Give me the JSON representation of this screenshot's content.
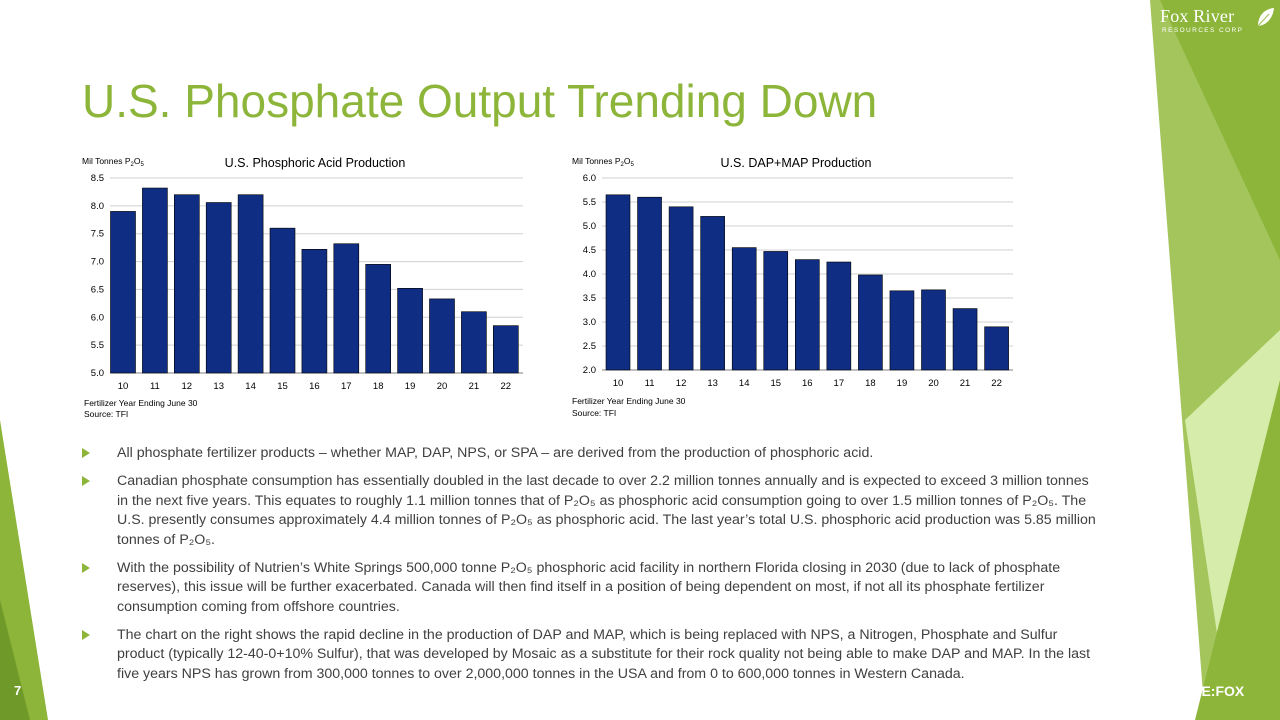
{
  "slide": {
    "title": "U.S. Phosphate Output Trending Down",
    "page_number": "7",
    "ticker": "CSE:FOX"
  },
  "logo": {
    "name": "Fox River",
    "tagline": "RESOURCES CORP"
  },
  "charts_text": [
    {
      "unit_prefix": "Mil Tonnes P",
      "title": "U.S. Phosphoric Acid Production",
      "footnote": "Fertilizer Year Ending June 30",
      "source": "Source:  TFI"
    },
    {
      "unit_prefix": "Mil Tonnes P",
      "title": "U.S. DAP+MAP Production",
      "footnote": "Fertilizer Year Ending June 30",
      "source": "Source:  TFI"
    }
  ],
  "chart_data": [
    {
      "type": "bar",
      "title": "U.S. Phosphoric Acid Production",
      "ylabel": "Mil Tonnes P2O5",
      "xlabel": "Fertilizer Year Ending June 30",
      "categories": [
        "10",
        "11",
        "12",
        "13",
        "14",
        "15",
        "16",
        "17",
        "18",
        "19",
        "20",
        "21",
        "22"
      ],
      "values": [
        7.9,
        8.32,
        8.2,
        8.06,
        8.2,
        7.6,
        7.22,
        7.32,
        6.95,
        6.52,
        6.33,
        6.1,
        5.85
      ],
      "ylim": [
        5.0,
        8.5
      ],
      "yticks": [
        "5.0",
        "5.5",
        "6.0",
        "6.5",
        "7.0",
        "7.5",
        "8.0",
        "8.5"
      ],
      "grid": true,
      "bar_color": "#0f2d82"
    },
    {
      "type": "bar",
      "title": "U.S. DAP+MAP Production",
      "ylabel": "Mil Tonnes P2O5",
      "xlabel": "Fertilizer Year Ending June 30",
      "categories": [
        "10",
        "11",
        "12",
        "13",
        "14",
        "15",
        "16",
        "17",
        "18",
        "19",
        "20",
        "21",
        "22"
      ],
      "values": [
        5.65,
        5.6,
        5.4,
        5.2,
        4.55,
        4.47,
        4.3,
        4.25,
        3.98,
        3.65,
        3.67,
        3.28,
        2.9
      ],
      "ylim": [
        2.0,
        6.0
      ],
      "yticks": [
        "2.0",
        "2.5",
        "3.0",
        "3.5",
        "4.0",
        "4.5",
        "5.0",
        "5.5",
        "6.0"
      ],
      "grid": true,
      "bar_color": "#0f2d82"
    }
  ],
  "bullets": [
    "All phosphate fertilizer products – whether MAP, DAP, NPS, or SPA – are derived from the production of phosphoric acid.",
    "Canadian phosphate consumption has essentially doubled in the last decade to over 2.2 million tonnes annually  and is expected to exceed 3 million tonnes in the next five years. This equates to roughly  1.1 million tonnes that of P₂O₅ as phosphoric acid consumption going to over 1.5 million tonnes of P₂O₅. The U.S. presently consumes approximately 4.4 million tonnes of P₂O₅ as phosphoric acid. The last year’s total U.S. phosphoric acid production was 5.85 million tonnes of P₂O₅.",
    "With the possibility of Nutrien’s White Springs 500,000 tonne  P₂O₅ phosphoric acid facility in northern Florida closing in 2030 (due to lack of phosphate reserves), this issue will be further exacerbated. Canada will then find itself in a position of being dependent on most, if not all its phosphate fertilizer consumption coming from offshore countries.",
    "The chart on the right shows the rapid decline in the production of DAP and MAP, which is being replaced with NPS, a Nitrogen, Phosphate and Sulfur product (typically  12-40-0+10% Sulfur),  that was developed by Mosaic as a substitute for their rock quality not being able to make DAP and MAP.  In the last five years NPS has grown from 300,000 tonnes to over 2,000,000 tonnes in the USA and from 0 to 600,000 tonnes in Western Canada."
  ],
  "colors": {
    "accent_green": "#8cb53a",
    "bar_navy": "#0f2d82",
    "text_gray": "#404040"
  }
}
